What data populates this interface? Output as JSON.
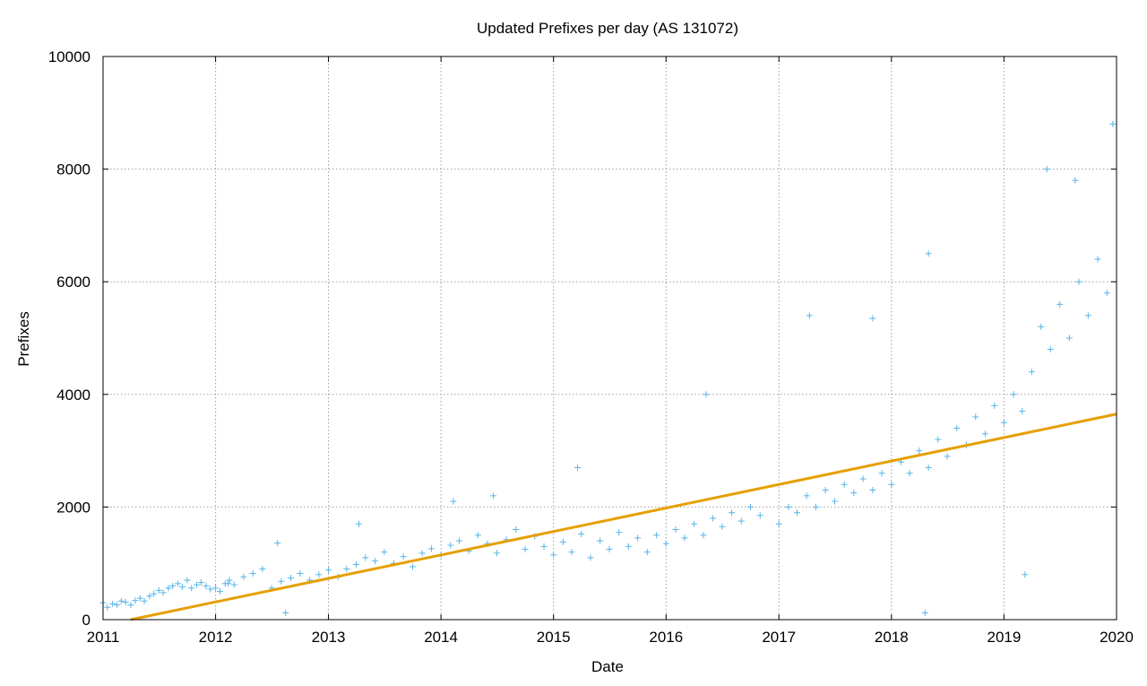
{
  "chart_data": {
    "type": "scatter",
    "title": "Updated Prefixes per day (AS 131072)",
    "xlabel": "Date",
    "ylabel": "Prefixes",
    "x_type": "date",
    "xlim": [
      "2011-01-01",
      "2020-01-01"
    ],
    "ylim": [
      0,
      10000
    ],
    "x_ticks": [
      "2011",
      "2012",
      "2013",
      "2014",
      "2015",
      "2016",
      "2017",
      "2018",
      "2019",
      "2020"
    ],
    "y_ticks": [
      0,
      2000,
      4000,
      6000,
      8000,
      10000
    ],
    "grid": true,
    "legend": "none",
    "colors": {
      "points": "#56b4e9",
      "trend": "#e69f00"
    },
    "series": [
      {
        "kind": "scatter",
        "marker": "plus",
        "note_points": "daily updated prefix counts, approximated from the plot",
        "points": [
          [
            "2011-01-01",
            300
          ],
          [
            "2011-01-15",
            220
          ],
          [
            "2011-02-01",
            280
          ],
          [
            "2011-02-15",
            260
          ],
          [
            "2011-03-01",
            330
          ],
          [
            "2011-03-15",
            310
          ],
          [
            "2011-04-01",
            260
          ],
          [
            "2011-04-15",
            340
          ],
          [
            "2011-05-01",
            380
          ],
          [
            "2011-05-15",
            330
          ],
          [
            "2011-06-01",
            420
          ],
          [
            "2011-06-15",
            460
          ],
          [
            "2011-07-01",
            520
          ],
          [
            "2011-07-15",
            480
          ],
          [
            "2011-08-01",
            560
          ],
          [
            "2011-08-15",
            600
          ],
          [
            "2011-09-01",
            640
          ],
          [
            "2011-09-15",
            580
          ],
          [
            "2011-10-01",
            700
          ],
          [
            "2011-10-15",
            560
          ],
          [
            "2011-11-01",
            620
          ],
          [
            "2011-11-15",
            660
          ],
          [
            "2011-12-01",
            600
          ],
          [
            "2011-12-15",
            540
          ],
          [
            "2012-01-01",
            560
          ],
          [
            "2012-01-15",
            500
          ],
          [
            "2012-02-01",
            640
          ],
          [
            "2012-02-15",
            700
          ],
          [
            "2012-03-01",
            620
          ],
          [
            "2012-04-01",
            760
          ],
          [
            "2012-05-01",
            820
          ],
          [
            "2012-06-01",
            900
          ],
          [
            "2012-07-01",
            560
          ],
          [
            "2012-08-01",
            680
          ],
          [
            "2012-08-15",
            120
          ],
          [
            "2012-09-01",
            740
          ],
          [
            "2012-10-01",
            820
          ],
          [
            "2012-11-01",
            700
          ],
          [
            "2012-12-01",
            800
          ],
          [
            "2013-01-01",
            880
          ],
          [
            "2013-02-01",
            760
          ],
          [
            "2013-03-01",
            900
          ],
          [
            "2013-04-01",
            980
          ],
          [
            "2013-05-01",
            1100
          ],
          [
            "2013-06-01",
            1040
          ],
          [
            "2013-07-01",
            1200
          ],
          [
            "2013-08-01",
            1000
          ],
          [
            "2013-09-01",
            1120
          ],
          [
            "2013-10-01",
            940
          ],
          [
            "2013-11-01",
            1180
          ],
          [
            "2013-12-01",
            1260
          ],
          [
            "2014-01-01",
            1150
          ],
          [
            "2014-02-01",
            1320
          ],
          [
            "2014-03-01",
            1400
          ],
          [
            "2014-04-01",
            1220
          ],
          [
            "2014-05-01",
            1500
          ],
          [
            "2014-06-01",
            1350
          ],
          [
            "2014-07-01",
            1180
          ],
          [
            "2014-08-01",
            1420
          ],
          [
            "2014-09-01",
            1600
          ],
          [
            "2014-10-01",
            1250
          ],
          [
            "2014-11-01",
            1480
          ],
          [
            "2014-12-01",
            1300
          ],
          [
            "2015-01-01",
            1150
          ],
          [
            "2015-02-01",
            1380
          ],
          [
            "2015-03-01",
            1200
          ],
          [
            "2015-04-01",
            1520
          ],
          [
            "2015-05-01",
            1100
          ],
          [
            "2015-06-01",
            1400
          ],
          [
            "2015-07-01",
            1250
          ],
          [
            "2015-08-01",
            1550
          ],
          [
            "2015-09-01",
            1300
          ],
          [
            "2015-10-01",
            1450
          ],
          [
            "2015-11-01",
            1200
          ],
          [
            "2015-12-01",
            1500
          ],
          [
            "2016-01-01",
            1350
          ],
          [
            "2016-02-01",
            1600
          ],
          [
            "2016-03-01",
            1450
          ],
          [
            "2016-04-01",
            1700
          ],
          [
            "2016-05-01",
            1500
          ],
          [
            "2016-06-01",
            1800
          ],
          [
            "2016-07-01",
            1650
          ],
          [
            "2016-08-01",
            1900
          ],
          [
            "2016-09-01",
            1750
          ],
          [
            "2016-10-01",
            2000
          ],
          [
            "2016-11-01",
            1850
          ],
          [
            "2017-01-01",
            1700
          ],
          [
            "2017-02-01",
            2000
          ],
          [
            "2017-03-01",
            1900
          ],
          [
            "2017-04-01",
            2200
          ],
          [
            "2017-05-01",
            2000
          ],
          [
            "2017-06-01",
            2300
          ],
          [
            "2017-07-01",
            2100
          ],
          [
            "2017-08-01",
            2400
          ],
          [
            "2017-09-01",
            2250
          ],
          [
            "2017-10-01",
            2500
          ],
          [
            "2017-11-01",
            2300
          ],
          [
            "2017-12-01",
            2600
          ],
          [
            "2018-01-01",
            2400
          ],
          [
            "2018-02-01",
            2800
          ],
          [
            "2018-03-01",
            2600
          ],
          [
            "2018-04-01",
            3000
          ],
          [
            "2018-05-01",
            2700
          ],
          [
            "2018-06-01",
            3200
          ],
          [
            "2018-07-01",
            2900
          ],
          [
            "2018-08-01",
            3400
          ],
          [
            "2018-09-01",
            3100
          ],
          [
            "2018-10-01",
            3600
          ],
          [
            "2018-11-01",
            3300
          ],
          [
            "2018-12-01",
            3800
          ],
          [
            "2019-01-01",
            3500
          ],
          [
            "2019-02-01",
            4000
          ],
          [
            "2019-03-01",
            3700
          ],
          [
            "2019-04-01",
            4400
          ],
          [
            "2019-05-01",
            5200
          ],
          [
            "2019-06-01",
            4800
          ],
          [
            "2019-07-01",
            5600
          ],
          [
            "2019-08-01",
            5000
          ],
          [
            "2019-09-01",
            6000
          ],
          [
            "2019-10-01",
            5400
          ],
          [
            "2019-11-01",
            6400
          ],
          [
            "2019-12-01",
            5800
          ],
          [
            "2019-12-20",
            8800
          ],
          [
            "2012-02-10",
            640
          ],
          [
            "2012-07-20",
            1360
          ],
          [
            "2013-04-10",
            1700
          ],
          [
            "2014-02-10",
            2100
          ],
          [
            "2014-06-20",
            2200
          ],
          [
            "2015-03-20",
            2700
          ],
          [
            "2016-05-10",
            4000
          ],
          [
            "2017-04-10",
            5400
          ],
          [
            "2017-11-01",
            5350
          ],
          [
            "2018-05-01",
            6500
          ],
          [
            "2018-04-20",
            120
          ],
          [
            "2019-03-10",
            800
          ],
          [
            "2019-05-20",
            8000
          ],
          [
            "2019-08-20",
            7800
          ]
        ]
      },
      {
        "kind": "line",
        "note": "trend line",
        "points": [
          [
            "2011-04-01",
            0
          ],
          [
            "2020-01-01",
            3650
          ]
        ]
      }
    ]
  }
}
